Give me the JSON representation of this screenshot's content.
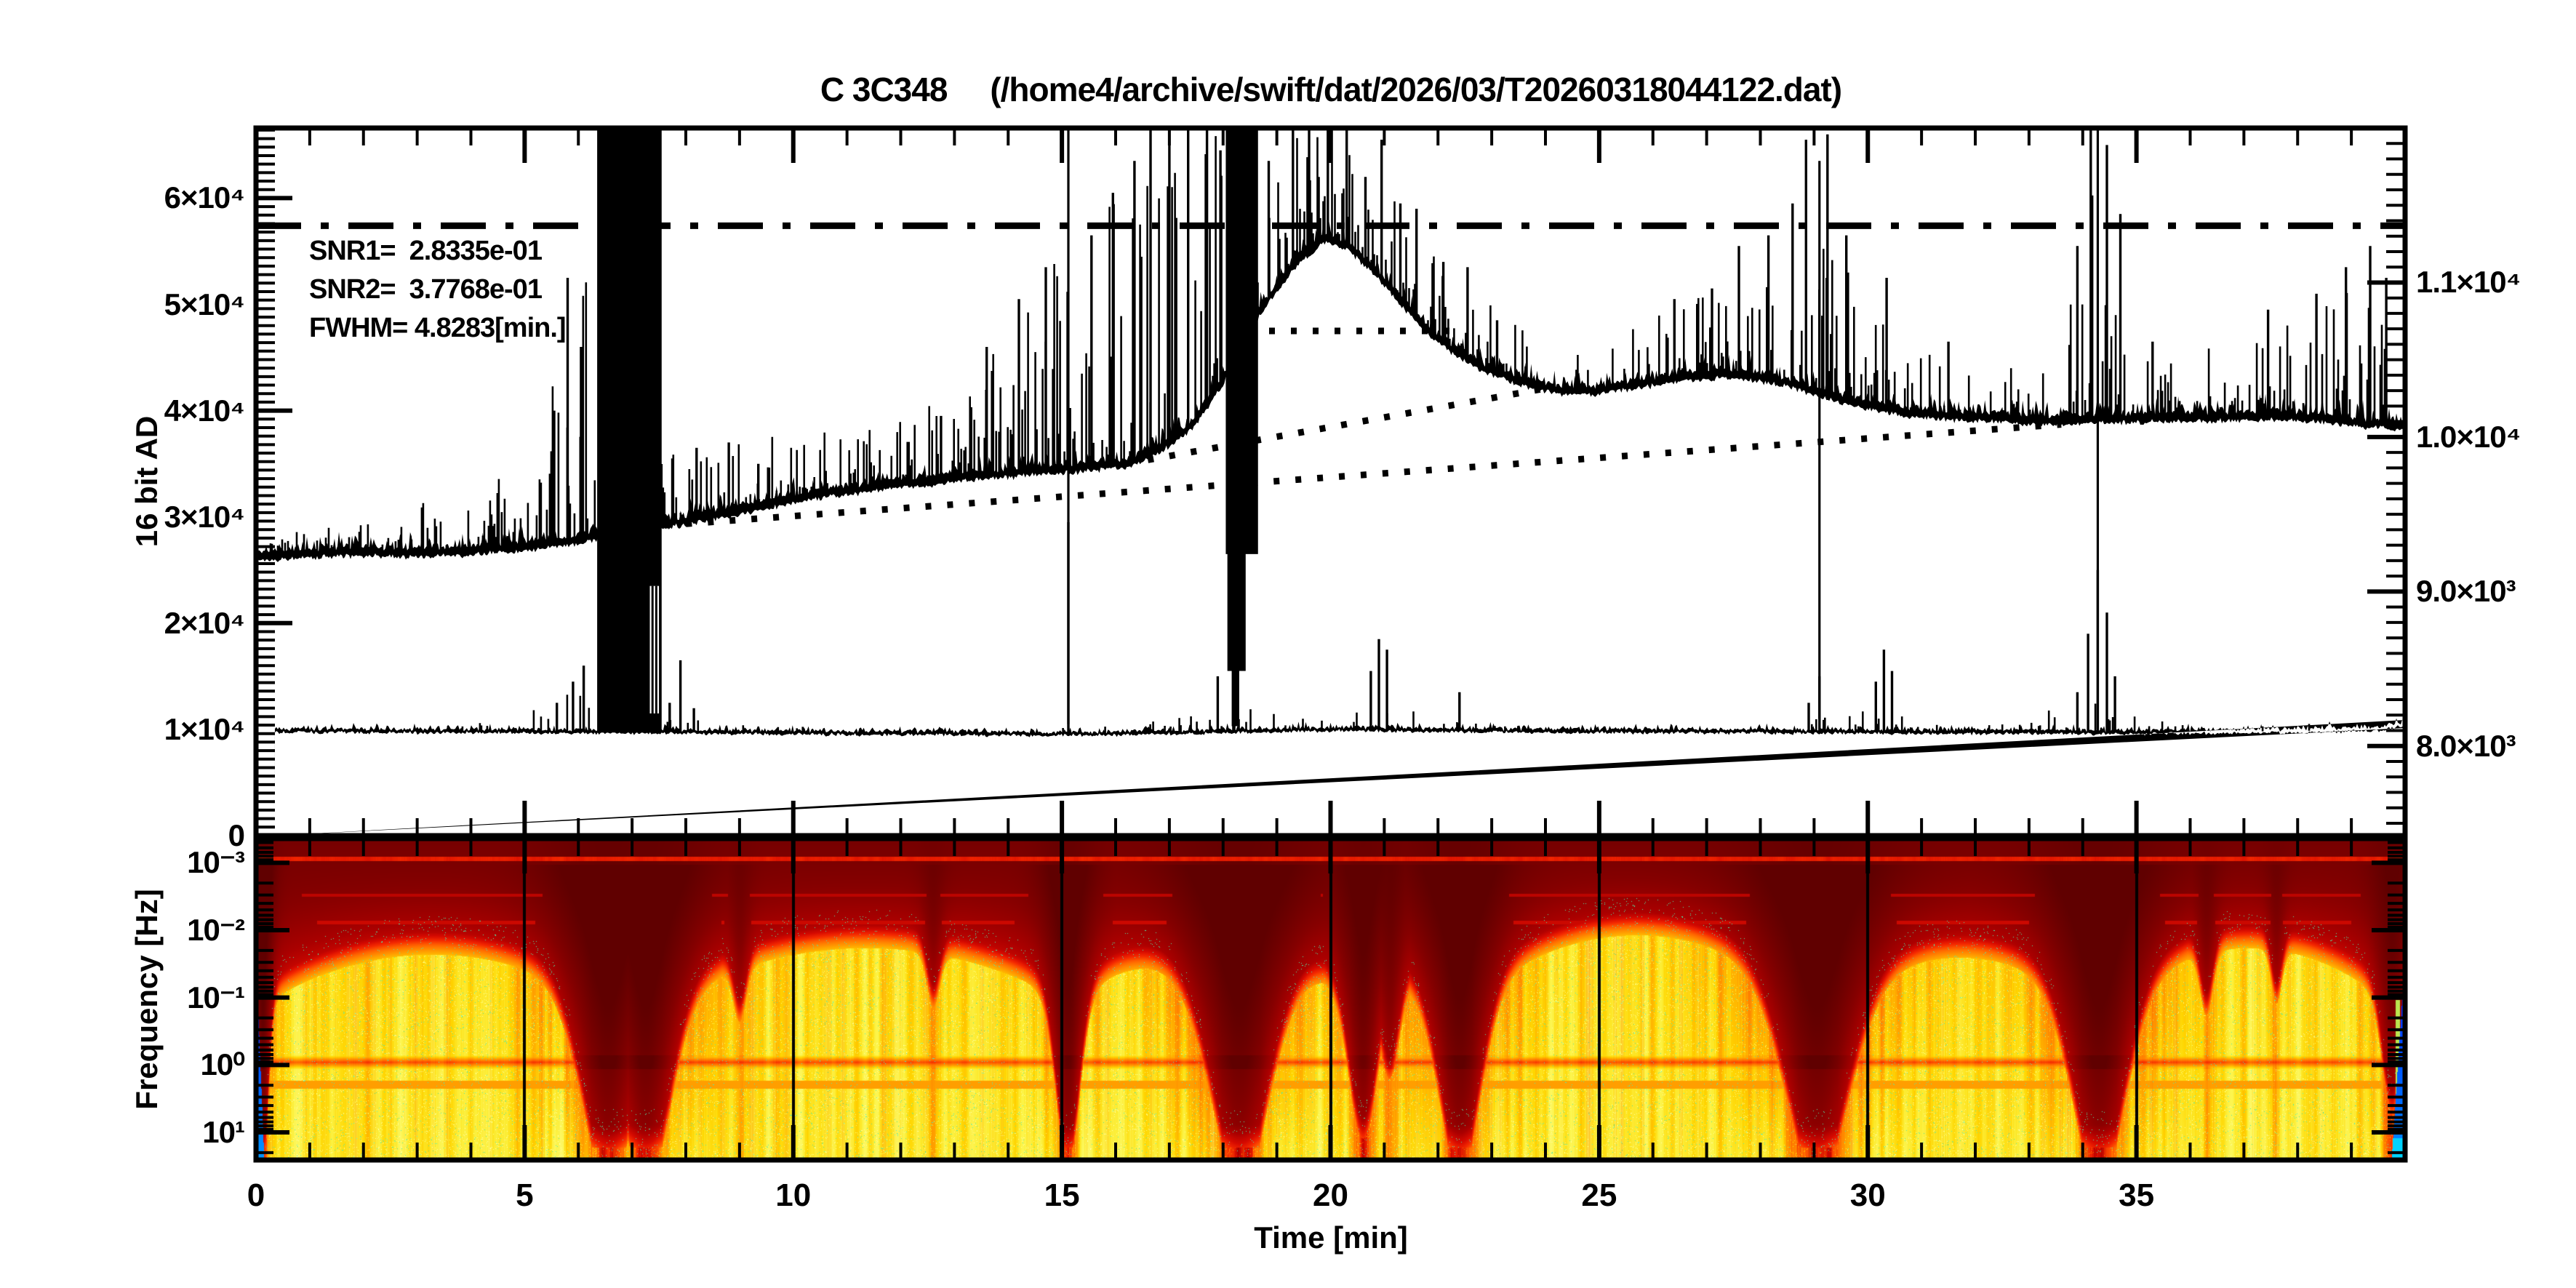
{
  "title": "C 3C348     (/home4/archive/swift/dat/2026/03/T20260318044122.dat)",
  "top_panel": {
    "ylabel": "16 bit AD",
    "annotations": {
      "snr1": "SNR1=  2.8335e-01",
      "snr2": "SNR2=  3.7768e-01",
      "fwhm": "FWHM= 4.8283[min.]"
    },
    "left_ticks": [
      {
        "value": 0,
        "label": "0"
      },
      {
        "value": 10000,
        "label": "1×10⁴"
      },
      {
        "value": 20000,
        "label": "2×10⁴"
      },
      {
        "value": 30000,
        "label": "3×10⁴"
      },
      {
        "value": 40000,
        "label": "4×10⁴"
      },
      {
        "value": 50000,
        "label": "5×10⁴"
      },
      {
        "value": 60000,
        "label": "6×10⁴"
      }
    ],
    "right_ticks": [
      {
        "value": 8000,
        "label": "8.0×10³"
      },
      {
        "value": 9000,
        "label": "9.0×10³"
      },
      {
        "value": 10000,
        "label": "1.0×10⁴"
      },
      {
        "value": 11000,
        "label": "1.1×10⁴"
      }
    ]
  },
  "spectrogram": {
    "ylabel": "Frequency [Hz]",
    "freq_ticks": [
      {
        "log": -3,
        "label": "10⁻³"
      },
      {
        "log": -2,
        "label": "10⁻²"
      },
      {
        "log": -1,
        "label": "10⁻¹"
      },
      {
        "log": 0,
        "label": "10⁰"
      },
      {
        "log": 1,
        "label": "10¹"
      }
    ]
  },
  "x_axis": {
    "label": "Time [min]",
    "ticks": [
      {
        "t": 0,
        "label": "0"
      },
      {
        "t": 5,
        "label": "5"
      },
      {
        "t": 10,
        "label": "10"
      },
      {
        "t": 15,
        "label": "15"
      },
      {
        "t": 20,
        "label": "20"
      },
      {
        "t": 25,
        "label": "25"
      },
      {
        "t": 30,
        "label": "30"
      },
      {
        "t": 35,
        "label": "35"
      }
    ]
  },
  "chart_data": {
    "type": [
      "line",
      "heatmap"
    ],
    "source": "C 3C348",
    "file": "/home4/archive/swift/dat/2026/03/T20260318044122.dat",
    "snr1": 0.28335,
    "snr2": 0.37768,
    "fwhm_min": 4.8283,
    "time_range_min": [
      0,
      40
    ],
    "ad_range": [
      0,
      66600
    ],
    "right_axis_range": [
      7420,
      12000
    ],
    "freq_log_range": [
      -3.36,
      1.41
    ],
    "dash_dot_level": 57400,
    "dotted_lines": [
      [
        [
          7.6,
          29200
        ],
        [
          33.6,
          38700
        ]
      ],
      [
        [
          16.2,
          35000
        ],
        [
          23.9,
          42000
        ]
      ],
      [
        [
          18.45,
          47500
        ],
        [
          22.3,
          47500
        ]
      ]
    ],
    "upper_baseline": [
      [
        0,
        26300
      ],
      [
        1,
        26500
      ],
      [
        2,
        26700
      ],
      [
        3,
        26600
      ],
      [
        4,
        26800
      ],
      [
        5,
        27200
      ],
      [
        6,
        27800
      ],
      [
        6.3,
        28200
      ],
      [
        7.6,
        29300
      ],
      [
        8.5,
        30100
      ],
      [
        9.5,
        31100
      ],
      [
        10.5,
        32100
      ],
      [
        11.5,
        32800
      ],
      [
        12.5,
        33300
      ],
      [
        13.5,
        33900
      ],
      [
        14.5,
        34300
      ],
      [
        15.3,
        34600
      ],
      [
        16.2,
        35000
      ],
      [
        16.8,
        36300
      ],
      [
        17.4,
        38500
      ],
      [
        17.9,
        42000
      ],
      [
        18.3,
        45500
      ],
      [
        18.65,
        49000
      ],
      [
        19,
        51500
      ],
      [
        19.4,
        54200
      ],
      [
        19.9,
        56200
      ],
      [
        20.3,
        55600
      ],
      [
        20.8,
        53200
      ],
      [
        21.3,
        50300
      ],
      [
        21.8,
        47600
      ],
      [
        22.3,
        45600
      ],
      [
        22.8,
        44100
      ],
      [
        23.3,
        43100
      ],
      [
        23.8,
        42300
      ],
      [
        24.3,
        41900
      ],
      [
        24.9,
        41900
      ],
      [
        25.6,
        42400
      ],
      [
        26.5,
        43100
      ],
      [
        27.2,
        43400
      ],
      [
        27.9,
        43200
      ],
      [
        28.6,
        42500
      ],
      [
        29.2,
        41500
      ],
      [
        29.9,
        40600
      ],
      [
        30.6,
        39900
      ],
      [
        31.4,
        39500
      ],
      [
        32.4,
        39300
      ],
      [
        33.4,
        39000
      ],
      [
        34.4,
        39200
      ],
      [
        35.4,
        39300
      ],
      [
        36.4,
        39400
      ],
      [
        37.4,
        39500
      ],
      [
        38.4,
        39300
      ],
      [
        39.2,
        38800
      ],
      [
        39.9,
        38600
      ]
    ],
    "upper_spike_amp": [
      [
        0,
        1600
      ],
      [
        2,
        3200
      ],
      [
        3,
        5200
      ],
      [
        4,
        4200
      ],
      [
        5,
        9000
      ],
      [
        5.7,
        20000
      ],
      [
        6.2,
        26000
      ],
      [
        7.6,
        6500
      ],
      [
        9,
        7200
      ],
      [
        10,
        5800
      ],
      [
        11,
        6200
      ],
      [
        12,
        7200
      ],
      [
        12.8,
        9500
      ],
      [
        13.5,
        12500
      ],
      [
        14.2,
        16500
      ],
      [
        15,
        21000
      ],
      [
        16,
        25000
      ],
      [
        17,
        27000
      ],
      [
        18,
        25000
      ],
      [
        18.8,
        13000
      ],
      [
        19.5,
        11500
      ],
      [
        20,
        10500
      ],
      [
        20.9,
        9500
      ],
      [
        21.5,
        8000
      ],
      [
        22.5,
        7500
      ],
      [
        23.5,
        5500
      ],
      [
        24.5,
        4200
      ],
      [
        25.5,
        5200
      ],
      [
        26.5,
        7200
      ],
      [
        27.5,
        9500
      ],
      [
        28.3,
        13500
      ],
      [
        28.9,
        22000
      ],
      [
        29.4,
        14000
      ],
      [
        30,
        10000
      ],
      [
        30.5,
        8500
      ],
      [
        31,
        6500
      ],
      [
        32,
        5800
      ],
      [
        33,
        5800
      ],
      [
        33.9,
        12500
      ],
      [
        34.3,
        25000
      ],
      [
        34.7,
        16000
      ],
      [
        35.2,
        7500
      ],
      [
        36,
        6200
      ],
      [
        37,
        7200
      ],
      [
        38,
        9200
      ],
      [
        38.7,
        11500
      ],
      [
        39.4,
        13500
      ],
      [
        39.9,
        9500
      ]
    ],
    "upper_major_spikes": [
      [
        5.55,
        40000
      ],
      [
        5.8,
        52500
      ],
      [
        6.05,
        46000
      ],
      [
        7.75,
        35500
      ],
      [
        8.2,
        36500
      ],
      [
        8.8,
        37000
      ],
      [
        9.35,
        35000
      ],
      [
        12.75,
        39500
      ],
      [
        13.6,
        46000
      ],
      [
        14.2,
        50500
      ],
      [
        14.7,
        53500
      ],
      [
        15.55,
        56500
      ],
      [
        15.95,
        60500
      ],
      [
        16.35,
        63500
      ],
      [
        16.65,
        66600
      ],
      [
        17.0,
        66600
      ],
      [
        17.35,
        66600
      ],
      [
        17.7,
        66600
      ],
      [
        17.95,
        64500
      ],
      [
        18.85,
        63500
      ],
      [
        19.3,
        66600
      ],
      [
        19.6,
        66600
      ],
      [
        19.95,
        66600
      ],
      [
        20.3,
        66600
      ],
      [
        20.65,
        62000
      ],
      [
        20.95,
        65500
      ],
      [
        21.3,
        59500
      ],
      [
        21.6,
        59000
      ],
      [
        22.1,
        54000
      ],
      [
        22.55,
        53500
      ],
      [
        23.1,
        48500
      ],
      [
        26.4,
        50500
      ],
      [
        27.1,
        51500
      ],
      [
        27.6,
        55500
      ],
      [
        28.15,
        56500
      ],
      [
        28.6,
        59500
      ],
      [
        28.85,
        65500
      ],
      [
        29.25,
        66000
      ],
      [
        29.6,
        56500
      ],
      [
        30.35,
        52500
      ],
      [
        31.5,
        46500
      ],
      [
        33.9,
        55500
      ],
      [
        34.15,
        66600
      ],
      [
        34.45,
        65000
      ],
      [
        34.7,
        58500
      ],
      [
        35.3,
        46500
      ],
      [
        37.45,
        49500
      ],
      [
        38.35,
        51000
      ],
      [
        38.9,
        53500
      ],
      [
        39.35,
        55500
      ],
      [
        39.65,
        52500
      ]
    ],
    "blocks": [
      [
        6.35,
        7.55,
        9700,
        66600
      ],
      [
        18.05,
        18.65,
        26500,
        66600
      ],
      [
        18.08,
        18.42,
        15500,
        27000
      ],
      [
        18.16,
        18.3,
        10300,
        16000
      ]
    ],
    "white_notch": [
      7.33,
      7.5,
      11500,
      23500
    ],
    "notch_lines": [
      7.38,
      7.45
    ],
    "full_lines": [
      [
        15.12,
        10500,
        66600
      ],
      [
        29.1,
        11000,
        63500
      ],
      [
        34.28,
        10000,
        66600
      ]
    ],
    "lower_baseline": [
      [
        0.33,
        9850
      ],
      [
        3,
        9820
      ],
      [
        6,
        9800
      ],
      [
        8,
        9750
      ],
      [
        10,
        9680
      ],
      [
        12,
        9620
      ],
      [
        14,
        9580
      ],
      [
        15,
        9560
      ],
      [
        16,
        9600
      ],
      [
        17,
        9700
      ],
      [
        18,
        9800
      ],
      [
        19,
        9900
      ],
      [
        20,
        10000
      ],
      [
        21,
        10000
      ],
      [
        22,
        9900
      ],
      [
        24,
        9850
      ],
      [
        26,
        9820
      ],
      [
        28,
        9800
      ],
      [
        30,
        9780
      ],
      [
        32,
        9750
      ],
      [
        34,
        9720
      ],
      [
        36,
        9750
      ],
      [
        38,
        9850
      ],
      [
        39.5,
        10000
      ],
      [
        39.9,
        10400
      ]
    ],
    "lower_spike_amp": [
      [
        0,
        250
      ],
      [
        3,
        350
      ],
      [
        4,
        700
      ],
      [
        5,
        1600
      ],
      [
        5.9,
        4000
      ],
      [
        7.8,
        2500
      ],
      [
        9,
        700
      ],
      [
        12,
        450
      ],
      [
        14,
        500
      ],
      [
        15.5,
        900
      ],
      [
        16.5,
        1500
      ],
      [
        17.5,
        2500
      ],
      [
        18.8,
        2200
      ],
      [
        20,
        900
      ],
      [
        21,
        2500
      ],
      [
        22,
        1500
      ],
      [
        23,
        600
      ],
      [
        25,
        400
      ],
      [
        27,
        450
      ],
      [
        28.5,
        900
      ],
      [
        29.3,
        1800
      ],
      [
        30.3,
        2800
      ],
      [
        31,
        700
      ],
      [
        33,
        800
      ],
      [
        34,
        4500
      ],
      [
        34.8,
        1800
      ],
      [
        36,
        500
      ],
      [
        37.5,
        600
      ],
      [
        39,
        700
      ],
      [
        39.9,
        900
      ]
    ],
    "lower_spikes": [
      [
        5.6,
        12500
      ],
      [
        5.9,
        14500
      ],
      [
        6.1,
        16000
      ],
      [
        7.7,
        12500
      ],
      [
        7.9,
        16500
      ],
      [
        8.15,
        12000
      ],
      [
        15.12,
        29500
      ],
      [
        17.9,
        15000
      ],
      [
        20.75,
        15500
      ],
      [
        20.9,
        18500
      ],
      [
        21.05,
        17500
      ],
      [
        22.4,
        13500
      ],
      [
        28.9,
        12500
      ],
      [
        29.1,
        15000
      ],
      [
        30.15,
        14500
      ],
      [
        30.3,
        17500
      ],
      [
        30.45,
        15500
      ],
      [
        33.9,
        13500
      ],
      [
        34.1,
        19000
      ],
      [
        34.28,
        25000
      ],
      [
        34.45,
        21000
      ],
      [
        34.6,
        15000
      ]
    ],
    "spectrogram": {
      "grid_minutes": [
        5,
        10,
        15,
        20,
        25,
        30,
        35
      ],
      "funnels": [
        [
          0.12,
          0.1,
          0.95
        ],
        [
          6.55,
          0.5,
          1.0
        ],
        [
          7.25,
          0.45,
          1.0
        ],
        [
          9.0,
          0.12,
          0.3
        ],
        [
          12.6,
          0.12,
          0.3
        ],
        [
          15.1,
          0.22,
          0.9
        ],
        [
          18.3,
          0.55,
          1.0
        ],
        [
          20.6,
          0.26,
          0.75
        ],
        [
          21.1,
          0.18,
          0.5
        ],
        [
          22.4,
          0.4,
          0.95
        ],
        [
          29.05,
          0.6,
          1.0
        ],
        [
          34.3,
          0.5,
          1.0
        ],
        [
          36.3,
          0.12,
          0.35
        ],
        [
          37.6,
          0.1,
          0.3
        ],
        [
          39.75,
          0.18,
          0.6
        ]
      ],
      "arch_segments": [
        [
          0.25,
          6.3,
          0.36
        ],
        [
          7.7,
          15.0,
          0.34
        ],
        [
          15.3,
          18.05,
          0.4
        ],
        [
          18.7,
          20.4,
          0.43
        ],
        [
          20.8,
          22.2,
          0.45
        ],
        [
          22.6,
          28.8,
          0.3
        ],
        [
          29.4,
          34.0,
          0.37
        ],
        [
          34.6,
          39.6,
          0.34
        ]
      ],
      "h_streak_fracs": [
        0.062,
        0.175,
        0.26
      ],
      "dark_band_frac": 0.695,
      "dark_band2_frac": 0.765,
      "edge_color": "#0030ff",
      "colors": {
        "dark_red": "#600000",
        "red": "#d40000",
        "orange": "#ff9e00",
        "yellow": "#fff34a",
        "speckle": "#50ebaa",
        "blue": "#0030ff"
      }
    }
  }
}
